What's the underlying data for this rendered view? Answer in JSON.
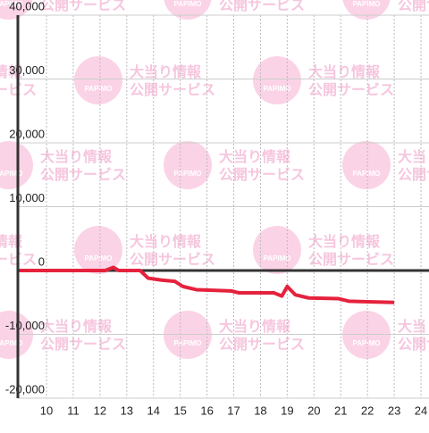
{
  "chart_data": {
    "type": "line",
    "x": [
      9,
      12.2,
      12.5,
      12.7,
      13.5,
      13.8,
      14.3,
      14.8,
      15.1,
      15.6,
      16.9,
      17.2,
      18.5,
      18.8,
      19.0,
      19.3,
      19.8,
      20.9,
      21.3,
      22.0,
      23.0
    ],
    "series": [
      {
        "color": "#e5223d",
        "values": [
          0,
          0,
          500,
          0,
          0,
          -1200,
          -1500,
          -1700,
          -2500,
          -3000,
          -3200,
          -3500,
          -3500,
          -4000,
          -2500,
          -3800,
          -4300,
          -4400,
          -4800,
          -4900,
          -5000
        ]
      }
    ],
    "xlim": [
      8.93,
      24.3
    ],
    "xticks": [
      10,
      11,
      12,
      13,
      14,
      15,
      16,
      17,
      18,
      19,
      20,
      21,
      22,
      23,
      24
    ],
    "ylim": [
      -20000,
      40000
    ],
    "yticks": [
      {
        "value": -20000,
        "label": "-20,000"
      },
      {
        "value": -10000,
        "label": "-10,000"
      },
      0,
      {
        "value": 10000,
        "label": "10,000"
      },
      {
        "value": 20000,
        "label": "20,000"
      },
      {
        "value": 30000,
        "label": "30,000"
      },
      {
        "value": 40000,
        "label": "40,000"
      }
    ],
    "grid": true
  },
  "watermark": {
    "title": "大当り情報",
    "subtitle": "公開サービス",
    "logo": "PAPIMO"
  }
}
